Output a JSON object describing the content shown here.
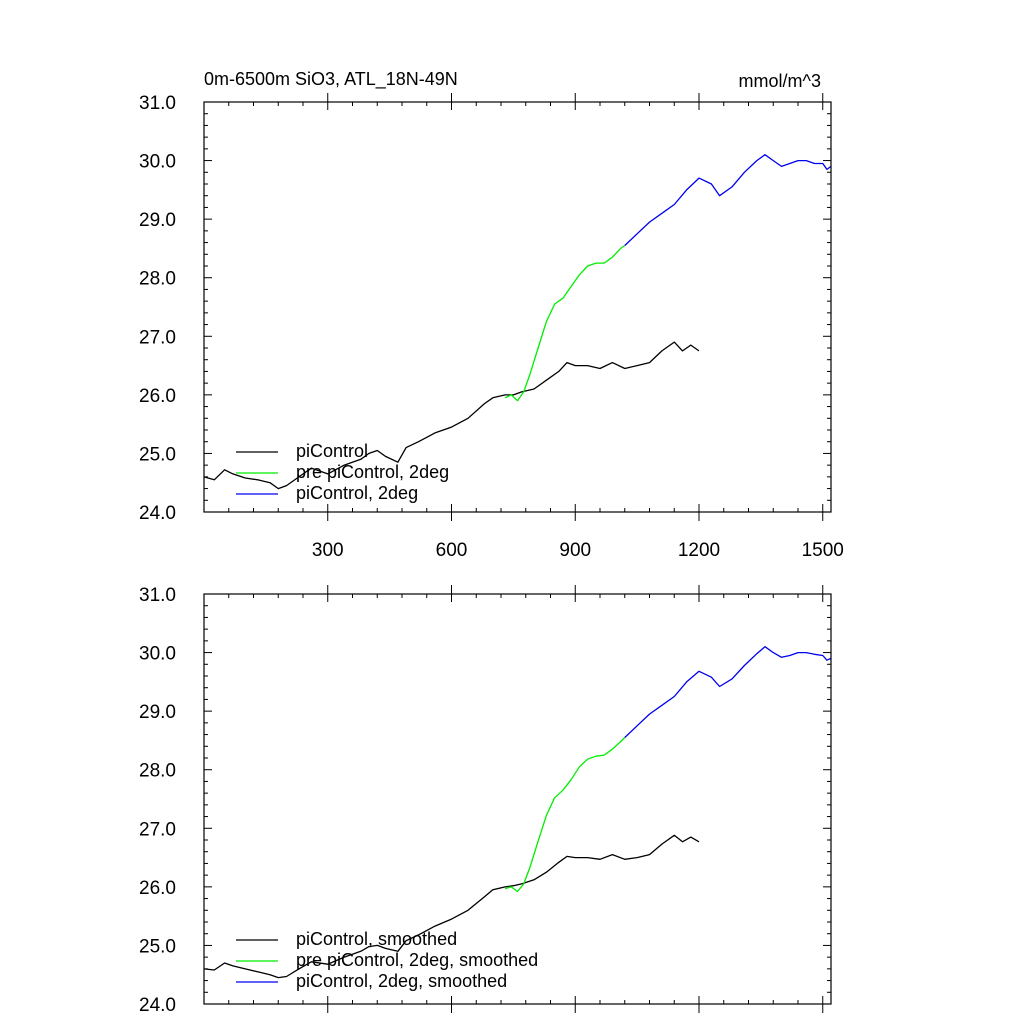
{
  "chart_data": [
    {
      "type": "line",
      "title": "0m-6500m SiO3, ATL_18N-49N",
      "units": "mmol/m^3",
      "xlim": [
        0,
        1520
      ],
      "ylim": [
        24.0,
        31.0
      ],
      "xticks": [
        300,
        600,
        900,
        1200,
        1500
      ],
      "xtick_labels": [
        "300",
        "600",
        "900",
        "1200",
        "1500"
      ],
      "yticks": [
        24,
        25,
        26,
        27,
        28,
        29,
        30,
        31
      ],
      "ytick_labels": [
        "24.0",
        "25.0",
        "26.0",
        "27.0",
        "28.0",
        "29.0",
        "30.0",
        "31.0"
      ],
      "grid": false,
      "legend_position": "bottom-left",
      "series": [
        {
          "name": "piControl",
          "color": "#000000",
          "x": [
            0,
            25,
            50,
            70,
            100,
            130,
            160,
            180,
            200,
            230,
            260,
            300,
            340,
            380,
            400,
            420,
            440,
            470,
            490,
            520,
            560,
            600,
            640,
            680,
            700,
            730,
            750,
            770,
            800,
            830,
            860,
            880,
            900,
            930,
            960,
            990,
            1020,
            1050,
            1080,
            1110,
            1140,
            1160,
            1180,
            1200
          ],
          "values": [
            24.6,
            24.55,
            24.72,
            24.65,
            24.58,
            24.55,
            24.5,
            24.4,
            24.45,
            24.6,
            24.75,
            24.65,
            24.8,
            24.9,
            25.0,
            25.05,
            24.95,
            24.85,
            25.1,
            25.2,
            25.35,
            25.45,
            25.6,
            25.85,
            25.95,
            26.0,
            26.0,
            26.05,
            26.1,
            26.25,
            26.4,
            26.55,
            26.5,
            26.5,
            26.45,
            26.55,
            26.45,
            26.5,
            26.55,
            26.75,
            26.9,
            26.75,
            26.85,
            26.75
          ]
        },
        {
          "name": "pre piControl, 2deg",
          "color": "#00ee00",
          "x": [
            730,
            745,
            760,
            775,
            790,
            810,
            830,
            850,
            870,
            890,
            910,
            930,
            950,
            970,
            990,
            1010,
            1020
          ],
          "values": [
            25.95,
            26.0,
            25.9,
            26.05,
            26.35,
            26.8,
            27.25,
            27.55,
            27.65,
            27.85,
            28.05,
            28.2,
            28.25,
            28.25,
            28.35,
            28.5,
            28.55
          ]
        },
        {
          "name": "piControl, 2deg",
          "color": "#0000ee",
          "x": [
            1020,
            1050,
            1080,
            1110,
            1140,
            1170,
            1200,
            1230,
            1250,
            1280,
            1310,
            1340,
            1360,
            1380,
            1400,
            1420,
            1440,
            1460,
            1480,
            1500,
            1510,
            1520
          ],
          "values": [
            28.55,
            28.75,
            28.95,
            29.1,
            29.25,
            29.5,
            29.7,
            29.6,
            29.4,
            29.55,
            29.8,
            30.0,
            30.1,
            30.0,
            29.9,
            29.95,
            30.0,
            30.0,
            29.95,
            29.95,
            29.85,
            29.9
          ]
        }
      ]
    },
    {
      "type": "line",
      "title": "",
      "units": "",
      "xlim": [
        0,
        1520
      ],
      "ylim": [
        24.0,
        31.0
      ],
      "xticks": [
        300,
        600,
        900,
        1200,
        1500
      ],
      "xtick_labels": [],
      "yticks": [
        24,
        25,
        26,
        27,
        28,
        29,
        30,
        31
      ],
      "ytick_labels": [
        "24.0",
        "25.0",
        "26.0",
        "27.0",
        "28.0",
        "29.0",
        "30.0",
        "31.0"
      ],
      "grid": false,
      "legend_position": "bottom-left",
      "series": [
        {
          "name": "piControl, smoothed",
          "color": "#000000",
          "x": [
            0,
            25,
            50,
            70,
            100,
            130,
            160,
            180,
            200,
            230,
            260,
            300,
            340,
            380,
            400,
            420,
            440,
            470,
            490,
            520,
            560,
            600,
            640,
            680,
            700,
            730,
            750,
            770,
            800,
            830,
            860,
            880,
            900,
            930,
            960,
            990,
            1020,
            1050,
            1080,
            1110,
            1140,
            1160,
            1180,
            1200
          ],
          "values": [
            24.6,
            24.58,
            24.7,
            24.65,
            24.6,
            24.55,
            24.5,
            24.45,
            24.47,
            24.6,
            24.72,
            24.68,
            24.8,
            24.9,
            24.98,
            25.0,
            24.95,
            24.9,
            25.08,
            25.18,
            25.33,
            25.45,
            25.6,
            25.83,
            25.95,
            26.0,
            26.02,
            26.05,
            26.12,
            26.25,
            26.42,
            26.52,
            26.5,
            26.5,
            26.47,
            26.55,
            26.47,
            26.5,
            26.55,
            26.73,
            26.88,
            26.77,
            26.85,
            26.77
          ]
        },
        {
          "name": "pre piControl, 2deg, smoothed",
          "color": "#00ee00",
          "x": [
            730,
            745,
            760,
            775,
            790,
            810,
            830,
            850,
            870,
            890,
            910,
            930,
            950,
            970,
            990,
            1010,
            1020
          ],
          "values": [
            25.97,
            26.0,
            25.92,
            26.05,
            26.33,
            26.78,
            27.22,
            27.52,
            27.65,
            27.83,
            28.05,
            28.18,
            28.23,
            28.25,
            28.35,
            28.48,
            28.55
          ]
        },
        {
          "name": "piControl, 2deg, smoothed",
          "color": "#0000ee",
          "x": [
            1020,
            1050,
            1080,
            1110,
            1140,
            1170,
            1200,
            1230,
            1250,
            1280,
            1310,
            1340,
            1360,
            1380,
            1400,
            1420,
            1440,
            1460,
            1480,
            1500,
            1510,
            1520
          ],
          "values": [
            28.55,
            28.75,
            28.95,
            29.1,
            29.25,
            29.5,
            29.68,
            29.58,
            29.42,
            29.55,
            29.78,
            29.98,
            30.1,
            30.0,
            29.92,
            29.95,
            30.0,
            30.0,
            29.97,
            29.95,
            29.87,
            29.9
          ]
        }
      ]
    }
  ]
}
